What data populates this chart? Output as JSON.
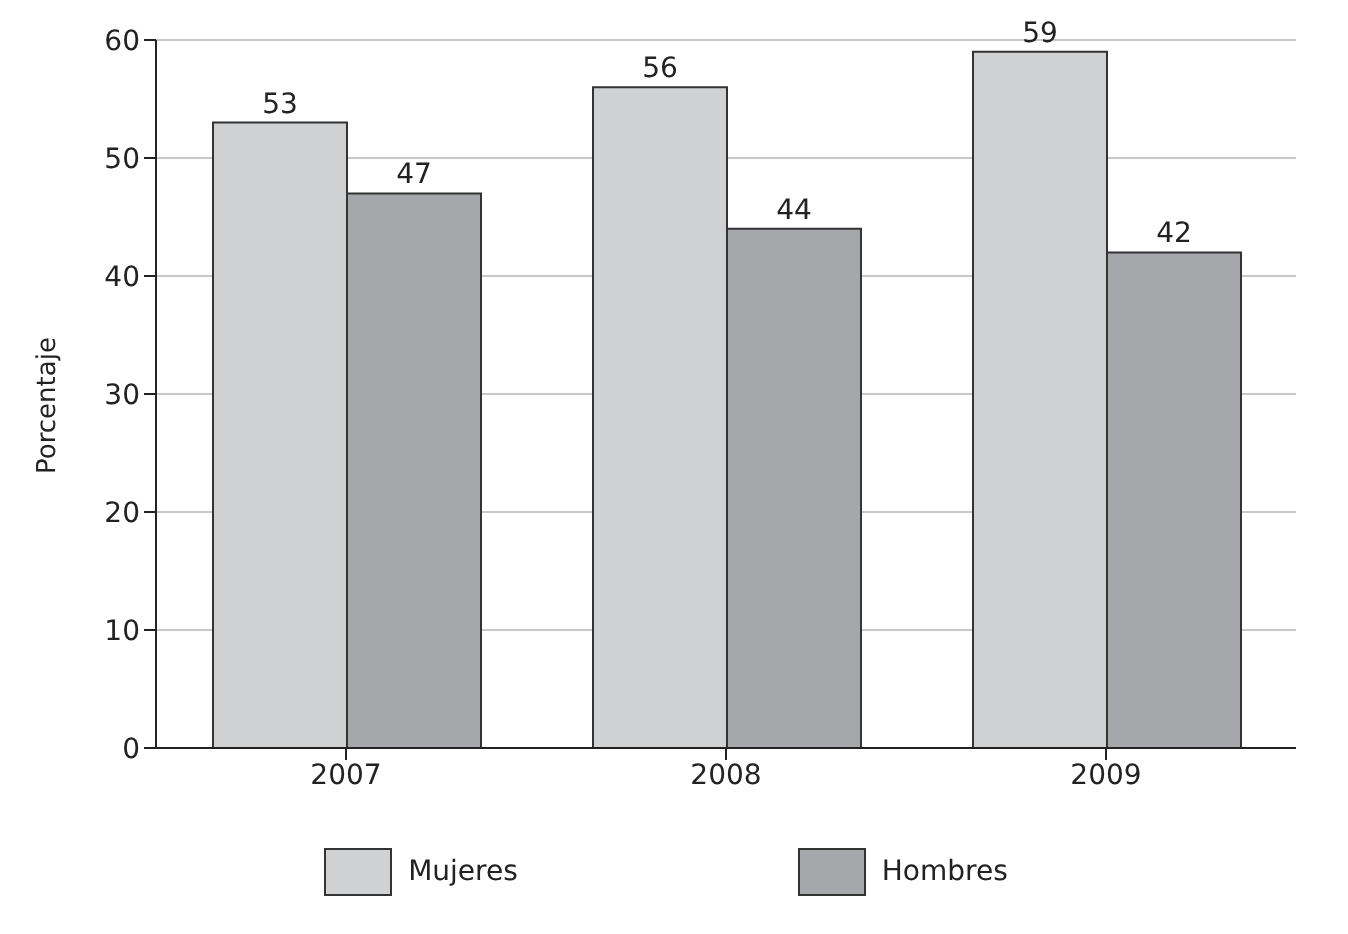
{
  "chart_data": {
    "type": "bar",
    "ylabel": "Porcentaje",
    "categories": [
      "2007",
      "2008",
      "2009"
    ],
    "series": [
      {
        "name": "Mujeres",
        "color": "#d0d1d3",
        "values": [
          53,
          56,
          59
        ]
      },
      {
        "name": "Hombres",
        "color": "#a6a7aa",
        "values": [
          47,
          44,
          42
        ]
      }
    ],
    "ylim": [
      0,
      60
    ],
    "yticks": [
      0,
      10,
      20,
      30,
      40,
      50,
      60
    ],
    "grid": "y",
    "legend": "bottom",
    "data_labels": true
  }
}
